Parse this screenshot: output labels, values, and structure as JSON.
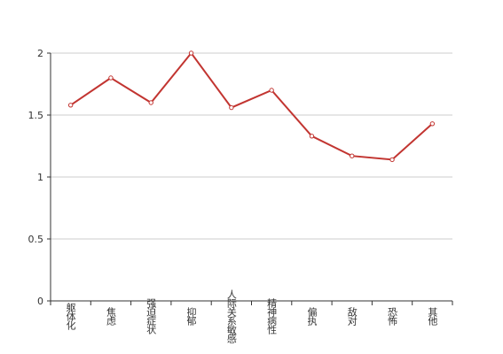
{
  "chart_data": {
    "type": "line",
    "categories": [
      "躯体化",
      "焦虑",
      "强迫症状",
      "抑郁",
      "人际关系敏感",
      "精神病性",
      "偏执",
      "敌对",
      "恐怖",
      "其他"
    ],
    "series": [
      {
        "color": "#c23531",
        "values": [
          1.58,
          1.8,
          1.6,
          2,
          1.56,
          1.7,
          1.33,
          1.17,
          1.14,
          1.43
        ]
      }
    ],
    "ylim": [
      0,
      2
    ],
    "yticks": [
      0,
      0.5,
      1,
      1.5,
      2
    ],
    "grid": true
  }
}
